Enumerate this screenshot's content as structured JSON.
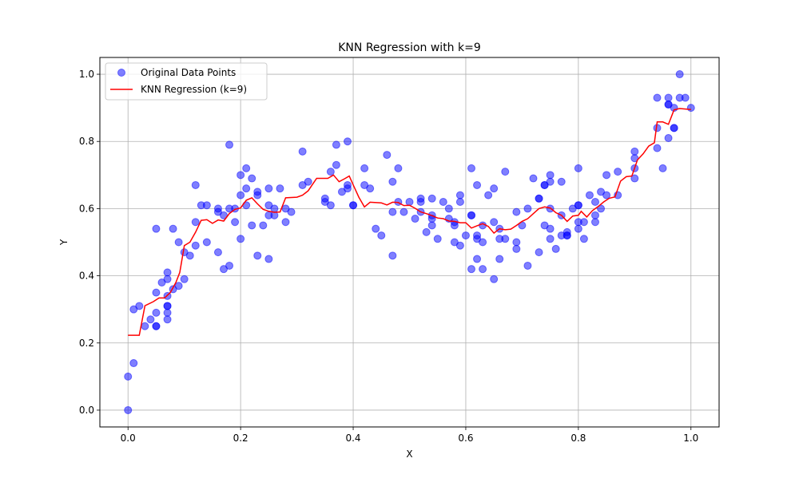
{
  "chart_data": {
    "type": "scatter",
    "title": "KNN Regression with k=9",
    "xlabel": "X",
    "ylabel": "Y",
    "xlim": [
      -0.05,
      1.05
    ],
    "ylim": [
      -0.05,
      1.05
    ],
    "xticks": [
      "0.0",
      "0.2",
      "0.4",
      "0.6",
      "0.8",
      "1.0"
    ],
    "yticks": [
      "0.0",
      "0.2",
      "0.4",
      "0.6",
      "0.8",
      "1.0"
    ],
    "grid": true,
    "legend_position": "top-left",
    "series": [
      {
        "name": "Original Data Points",
        "type": "scatter",
        "color": "#0000ff",
        "points": [
          [
            0.0,
            0.0
          ],
          [
            0.0,
            0.1
          ],
          [
            0.01,
            0.14
          ],
          [
            0.01,
            0.3
          ],
          [
            0.02,
            0.31
          ],
          [
            0.03,
            0.25
          ],
          [
            0.04,
            0.27
          ],
          [
            0.05,
            0.25
          ],
          [
            0.05,
            0.25
          ],
          [
            0.05,
            0.29
          ],
          [
            0.05,
            0.35
          ],
          [
            0.05,
            0.54
          ],
          [
            0.06,
            0.38
          ],
          [
            0.07,
            0.27
          ],
          [
            0.07,
            0.29
          ],
          [
            0.07,
            0.31
          ],
          [
            0.07,
            0.31
          ],
          [
            0.07,
            0.34
          ],
          [
            0.07,
            0.39
          ],
          [
            0.07,
            0.41
          ],
          [
            0.08,
            0.36
          ],
          [
            0.08,
            0.54
          ],
          [
            0.09,
            0.37
          ],
          [
            0.09,
            0.5
          ],
          [
            0.1,
            0.39
          ],
          [
            0.1,
            0.47
          ],
          [
            0.11,
            0.46
          ],
          [
            0.12,
            0.49
          ],
          [
            0.12,
            0.56
          ],
          [
            0.12,
            0.67
          ],
          [
            0.13,
            0.61
          ],
          [
            0.14,
            0.5
          ],
          [
            0.14,
            0.61
          ],
          [
            0.16,
            0.47
          ],
          [
            0.16,
            0.59
          ],
          [
            0.16,
            0.6
          ],
          [
            0.17,
            0.42
          ],
          [
            0.17,
            0.58
          ],
          [
            0.18,
            0.43
          ],
          [
            0.18,
            0.6
          ],
          [
            0.18,
            0.79
          ],
          [
            0.19,
            0.56
          ],
          [
            0.19,
            0.6
          ],
          [
            0.2,
            0.51
          ],
          [
            0.2,
            0.64
          ],
          [
            0.2,
            0.7
          ],
          [
            0.21,
            0.61
          ],
          [
            0.21,
            0.66
          ],
          [
            0.21,
            0.72
          ],
          [
            0.22,
            0.55
          ],
          [
            0.22,
            0.69
          ],
          [
            0.23,
            0.46
          ],
          [
            0.23,
            0.64
          ],
          [
            0.23,
            0.65
          ],
          [
            0.24,
            0.55
          ],
          [
            0.25,
            0.45
          ],
          [
            0.25,
            0.58
          ],
          [
            0.25,
            0.61
          ],
          [
            0.25,
            0.66
          ],
          [
            0.26,
            0.58
          ],
          [
            0.26,
            0.6
          ],
          [
            0.27,
            0.66
          ],
          [
            0.28,
            0.56
          ],
          [
            0.28,
            0.6
          ],
          [
            0.29,
            0.59
          ],
          [
            0.31,
            0.67
          ],
          [
            0.31,
            0.77
          ],
          [
            0.32,
            0.68
          ],
          [
            0.35,
            0.62
          ],
          [
            0.35,
            0.63
          ],
          [
            0.36,
            0.61
          ],
          [
            0.36,
            0.71
          ],
          [
            0.37,
            0.73
          ],
          [
            0.37,
            0.79
          ],
          [
            0.38,
            0.65
          ],
          [
            0.39,
            0.66
          ],
          [
            0.39,
            0.67
          ],
          [
            0.39,
            0.8
          ],
          [
            0.4,
            0.61
          ],
          [
            0.4,
            0.61
          ],
          [
            0.42,
            0.67
          ],
          [
            0.42,
            0.72
          ],
          [
            0.43,
            0.66
          ],
          [
            0.44,
            0.54
          ],
          [
            0.45,
            0.52
          ],
          [
            0.46,
            0.76
          ],
          [
            0.47,
            0.46
          ],
          [
            0.47,
            0.59
          ],
          [
            0.47,
            0.68
          ],
          [
            0.48,
            0.62
          ],
          [
            0.48,
            0.72
          ],
          [
            0.49,
            0.59
          ],
          [
            0.5,
            0.62
          ],
          [
            0.51,
            0.57
          ],
          [
            0.52,
            0.59
          ],
          [
            0.52,
            0.62
          ],
          [
            0.52,
            0.63
          ],
          [
            0.53,
            0.53
          ],
          [
            0.54,
            0.55
          ],
          [
            0.54,
            0.57
          ],
          [
            0.54,
            0.58
          ],
          [
            0.54,
            0.63
          ],
          [
            0.55,
            0.51
          ],
          [
            0.56,
            0.62
          ],
          [
            0.57,
            0.57
          ],
          [
            0.57,
            0.6
          ],
          [
            0.58,
            0.5
          ],
          [
            0.58,
            0.55
          ],
          [
            0.58,
            0.56
          ],
          [
            0.59,
            0.49
          ],
          [
            0.59,
            0.62
          ],
          [
            0.59,
            0.64
          ],
          [
            0.6,
            0.52
          ],
          [
            0.61,
            0.42
          ],
          [
            0.61,
            0.58
          ],
          [
            0.61,
            0.58
          ],
          [
            0.61,
            0.72
          ],
          [
            0.62,
            0.45
          ],
          [
            0.62,
            0.51
          ],
          [
            0.62,
            0.52
          ],
          [
            0.62,
            0.67
          ],
          [
            0.63,
            0.42
          ],
          [
            0.63,
            0.5
          ],
          [
            0.63,
            0.55
          ],
          [
            0.64,
            0.64
          ],
          [
            0.65,
            0.39
          ],
          [
            0.65,
            0.56
          ],
          [
            0.65,
            0.66
          ],
          [
            0.66,
            0.45
          ],
          [
            0.66,
            0.51
          ],
          [
            0.66,
            0.54
          ],
          [
            0.67,
            0.51
          ],
          [
            0.67,
            0.71
          ],
          [
            0.69,
            0.48
          ],
          [
            0.69,
            0.5
          ],
          [
            0.69,
            0.59
          ],
          [
            0.7,
            0.55
          ],
          [
            0.71,
            0.43
          ],
          [
            0.71,
            0.6
          ],
          [
            0.72,
            0.69
          ],
          [
            0.73,
            0.47
          ],
          [
            0.73,
            0.63
          ],
          [
            0.73,
            0.63
          ],
          [
            0.74,
            0.55
          ],
          [
            0.74,
            0.67
          ],
          [
            0.74,
            0.67
          ],
          [
            0.75,
            0.51
          ],
          [
            0.75,
            0.54
          ],
          [
            0.75,
            0.6
          ],
          [
            0.75,
            0.68
          ],
          [
            0.75,
            0.7
          ],
          [
            0.76,
            0.48
          ],
          [
            0.77,
            0.52
          ],
          [
            0.77,
            0.58
          ],
          [
            0.77,
            0.68
          ],
          [
            0.78,
            0.52
          ],
          [
            0.78,
            0.52
          ],
          [
            0.78,
            0.53
          ],
          [
            0.79,
            0.6
          ],
          [
            0.8,
            0.54
          ],
          [
            0.8,
            0.56
          ],
          [
            0.8,
            0.61
          ],
          [
            0.8,
            0.61
          ],
          [
            0.8,
            0.72
          ],
          [
            0.81,
            0.51
          ],
          [
            0.81,
            0.56
          ],
          [
            0.82,
            0.64
          ],
          [
            0.83,
            0.56
          ],
          [
            0.83,
            0.58
          ],
          [
            0.83,
            0.62
          ],
          [
            0.84,
            0.6
          ],
          [
            0.84,
            0.65
          ],
          [
            0.85,
            0.64
          ],
          [
            0.85,
            0.7
          ],
          [
            0.87,
            0.64
          ],
          [
            0.87,
            0.71
          ],
          [
            0.9,
            0.69
          ],
          [
            0.9,
            0.72
          ],
          [
            0.9,
            0.75
          ],
          [
            0.9,
            0.77
          ],
          [
            0.94,
            0.78
          ],
          [
            0.94,
            0.84
          ],
          [
            0.94,
            0.93
          ],
          [
            0.95,
            0.72
          ],
          [
            0.96,
            0.81
          ],
          [
            0.96,
            0.91
          ],
          [
            0.96,
            0.91
          ],
          [
            0.96,
            0.93
          ],
          [
            0.97,
            0.84
          ],
          [
            0.97,
            0.84
          ],
          [
            0.97,
            0.9
          ],
          [
            0.98,
            0.93
          ],
          [
            0.98,
            1.0
          ],
          [
            0.99,
            0.93
          ],
          [
            1.0,
            0.9
          ]
        ]
      },
      {
        "name": "KNN Regression (k=9)",
        "type": "line",
        "color": "#ff0000",
        "points": [
          [
            0.0,
            0.223
          ],
          [
            0.02,
            0.223
          ],
          [
            0.03,
            0.311
          ],
          [
            0.045,
            0.323
          ],
          [
            0.055,
            0.334
          ],
          [
            0.065,
            0.334
          ],
          [
            0.075,
            0.35
          ],
          [
            0.085,
            0.38
          ],
          [
            0.092,
            0.41
          ],
          [
            0.1,
            0.49
          ],
          [
            0.11,
            0.5
          ],
          [
            0.12,
            0.53
          ],
          [
            0.13,
            0.565
          ],
          [
            0.14,
            0.567
          ],
          [
            0.15,
            0.556
          ],
          [
            0.16,
            0.566
          ],
          [
            0.17,
            0.563
          ],
          [
            0.18,
            0.585
          ],
          [
            0.19,
            0.598
          ],
          [
            0.2,
            0.602
          ],
          [
            0.21,
            0.625
          ],
          [
            0.22,
            0.632
          ],
          [
            0.23,
            0.614
          ],
          [
            0.24,
            0.598
          ],
          [
            0.25,
            0.592
          ],
          [
            0.26,
            0.589
          ],
          [
            0.27,
            0.59
          ],
          [
            0.28,
            0.632
          ],
          [
            0.3,
            0.634
          ],
          [
            0.31,
            0.64
          ],
          [
            0.32,
            0.653
          ],
          [
            0.335,
            0.69
          ],
          [
            0.355,
            0.69
          ],
          [
            0.365,
            0.7
          ],
          [
            0.375,
            0.68
          ],
          [
            0.385,
            0.689
          ],
          [
            0.393,
            0.697
          ],
          [
            0.4,
            0.671
          ],
          [
            0.41,
            0.634
          ],
          [
            0.42,
            0.605
          ],
          [
            0.43,
            0.619
          ],
          [
            0.45,
            0.617
          ],
          [
            0.46,
            0.611
          ],
          [
            0.47,
            0.619
          ],
          [
            0.48,
            0.618
          ],
          [
            0.49,
            0.609
          ],
          [
            0.5,
            0.61
          ],
          [
            0.51,
            0.601
          ],
          [
            0.52,
            0.59
          ],
          [
            0.53,
            0.585
          ],
          [
            0.54,
            0.579
          ],
          [
            0.55,
            0.572
          ],
          [
            0.56,
            0.57
          ],
          [
            0.57,
            0.563
          ],
          [
            0.58,
            0.562
          ],
          [
            0.59,
            0.558
          ],
          [
            0.6,
            0.558
          ],
          [
            0.61,
            0.542
          ],
          [
            0.62,
            0.549
          ],
          [
            0.63,
            0.555
          ],
          [
            0.64,
            0.547
          ],
          [
            0.65,
            0.527
          ],
          [
            0.66,
            0.54
          ],
          [
            0.67,
            0.537
          ],
          [
            0.68,
            0.539
          ],
          [
            0.69,
            0.55
          ],
          [
            0.7,
            0.562
          ],
          [
            0.71,
            0.57
          ],
          [
            0.72,
            0.585
          ],
          [
            0.73,
            0.6
          ],
          [
            0.74,
            0.605
          ],
          [
            0.75,
            0.602
          ],
          [
            0.76,
            0.588
          ],
          [
            0.77,
            0.58
          ],
          [
            0.78,
            0.562
          ],
          [
            0.79,
            0.578
          ],
          [
            0.8,
            0.58
          ],
          [
            0.805,
            0.592
          ],
          [
            0.815,
            0.575
          ],
          [
            0.825,
            0.594
          ],
          [
            0.835,
            0.606
          ],
          [
            0.845,
            0.62
          ],
          [
            0.855,
            0.631
          ],
          [
            0.865,
            0.635
          ],
          [
            0.875,
            0.682
          ],
          [
            0.885,
            0.695
          ],
          [
            0.895,
            0.697
          ],
          [
            0.905,
            0.745
          ],
          [
            0.915,
            0.763
          ],
          [
            0.925,
            0.786
          ],
          [
            0.935,
            0.796
          ],
          [
            0.94,
            0.858
          ],
          [
            0.95,
            0.858
          ],
          [
            0.96,
            0.851
          ],
          [
            0.97,
            0.894
          ],
          [
            0.98,
            0.898
          ],
          [
            1.0,
            0.895
          ]
        ]
      }
    ]
  }
}
